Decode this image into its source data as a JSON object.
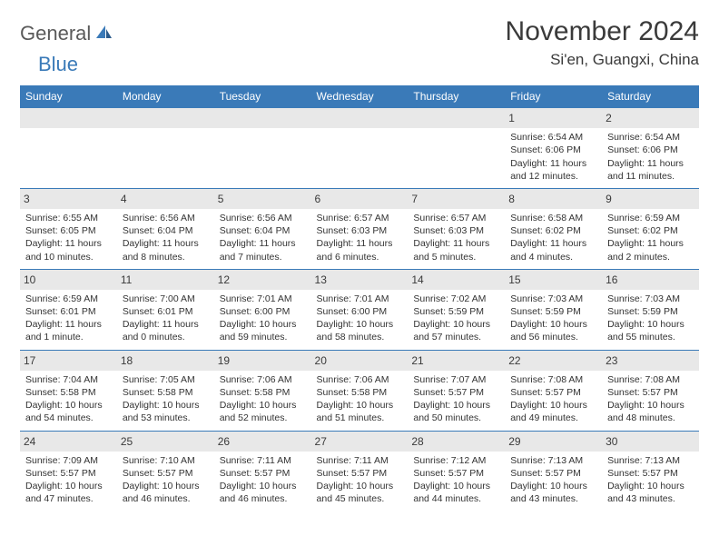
{
  "logo": {
    "general": "General",
    "blue": "Blue"
  },
  "title": "November 2024",
  "location": "Si'en, Guangxi, China",
  "colors": {
    "header_bg": "#3a7ab8",
    "header_text": "#ffffff",
    "daynum_bg": "#e8e8e8",
    "border": "#3a7ab8",
    "body_text": "#333333",
    "logo_gray": "#5a5a5a",
    "logo_blue": "#3a7ab8"
  },
  "weekdays": [
    "Sunday",
    "Monday",
    "Tuesday",
    "Wednesday",
    "Thursday",
    "Friday",
    "Saturday"
  ],
  "grid": [
    [
      null,
      null,
      null,
      null,
      null,
      {
        "n": "1",
        "sr": "Sunrise: 6:54 AM",
        "ss": "Sunset: 6:06 PM",
        "dl": "Daylight: 11 hours and 12 minutes."
      },
      {
        "n": "2",
        "sr": "Sunrise: 6:54 AM",
        "ss": "Sunset: 6:06 PM",
        "dl": "Daylight: 11 hours and 11 minutes."
      }
    ],
    [
      {
        "n": "3",
        "sr": "Sunrise: 6:55 AM",
        "ss": "Sunset: 6:05 PM",
        "dl": "Daylight: 11 hours and 10 minutes."
      },
      {
        "n": "4",
        "sr": "Sunrise: 6:56 AM",
        "ss": "Sunset: 6:04 PM",
        "dl": "Daylight: 11 hours and 8 minutes."
      },
      {
        "n": "5",
        "sr": "Sunrise: 6:56 AM",
        "ss": "Sunset: 6:04 PM",
        "dl": "Daylight: 11 hours and 7 minutes."
      },
      {
        "n": "6",
        "sr": "Sunrise: 6:57 AM",
        "ss": "Sunset: 6:03 PM",
        "dl": "Daylight: 11 hours and 6 minutes."
      },
      {
        "n": "7",
        "sr": "Sunrise: 6:57 AM",
        "ss": "Sunset: 6:03 PM",
        "dl": "Daylight: 11 hours and 5 minutes."
      },
      {
        "n": "8",
        "sr": "Sunrise: 6:58 AM",
        "ss": "Sunset: 6:02 PM",
        "dl": "Daylight: 11 hours and 4 minutes."
      },
      {
        "n": "9",
        "sr": "Sunrise: 6:59 AM",
        "ss": "Sunset: 6:02 PM",
        "dl": "Daylight: 11 hours and 2 minutes."
      }
    ],
    [
      {
        "n": "10",
        "sr": "Sunrise: 6:59 AM",
        "ss": "Sunset: 6:01 PM",
        "dl": "Daylight: 11 hours and 1 minute."
      },
      {
        "n": "11",
        "sr": "Sunrise: 7:00 AM",
        "ss": "Sunset: 6:01 PM",
        "dl": "Daylight: 11 hours and 0 minutes."
      },
      {
        "n": "12",
        "sr": "Sunrise: 7:01 AM",
        "ss": "Sunset: 6:00 PM",
        "dl": "Daylight: 10 hours and 59 minutes."
      },
      {
        "n": "13",
        "sr": "Sunrise: 7:01 AM",
        "ss": "Sunset: 6:00 PM",
        "dl": "Daylight: 10 hours and 58 minutes."
      },
      {
        "n": "14",
        "sr": "Sunrise: 7:02 AM",
        "ss": "Sunset: 5:59 PM",
        "dl": "Daylight: 10 hours and 57 minutes."
      },
      {
        "n": "15",
        "sr": "Sunrise: 7:03 AM",
        "ss": "Sunset: 5:59 PM",
        "dl": "Daylight: 10 hours and 56 minutes."
      },
      {
        "n": "16",
        "sr": "Sunrise: 7:03 AM",
        "ss": "Sunset: 5:59 PM",
        "dl": "Daylight: 10 hours and 55 minutes."
      }
    ],
    [
      {
        "n": "17",
        "sr": "Sunrise: 7:04 AM",
        "ss": "Sunset: 5:58 PM",
        "dl": "Daylight: 10 hours and 54 minutes."
      },
      {
        "n": "18",
        "sr": "Sunrise: 7:05 AM",
        "ss": "Sunset: 5:58 PM",
        "dl": "Daylight: 10 hours and 53 minutes."
      },
      {
        "n": "19",
        "sr": "Sunrise: 7:06 AM",
        "ss": "Sunset: 5:58 PM",
        "dl": "Daylight: 10 hours and 52 minutes."
      },
      {
        "n": "20",
        "sr": "Sunrise: 7:06 AM",
        "ss": "Sunset: 5:58 PM",
        "dl": "Daylight: 10 hours and 51 minutes."
      },
      {
        "n": "21",
        "sr": "Sunrise: 7:07 AM",
        "ss": "Sunset: 5:57 PM",
        "dl": "Daylight: 10 hours and 50 minutes."
      },
      {
        "n": "22",
        "sr": "Sunrise: 7:08 AM",
        "ss": "Sunset: 5:57 PM",
        "dl": "Daylight: 10 hours and 49 minutes."
      },
      {
        "n": "23",
        "sr": "Sunrise: 7:08 AM",
        "ss": "Sunset: 5:57 PM",
        "dl": "Daylight: 10 hours and 48 minutes."
      }
    ],
    [
      {
        "n": "24",
        "sr": "Sunrise: 7:09 AM",
        "ss": "Sunset: 5:57 PM",
        "dl": "Daylight: 10 hours and 47 minutes."
      },
      {
        "n": "25",
        "sr": "Sunrise: 7:10 AM",
        "ss": "Sunset: 5:57 PM",
        "dl": "Daylight: 10 hours and 46 minutes."
      },
      {
        "n": "26",
        "sr": "Sunrise: 7:11 AM",
        "ss": "Sunset: 5:57 PM",
        "dl": "Daylight: 10 hours and 46 minutes."
      },
      {
        "n": "27",
        "sr": "Sunrise: 7:11 AM",
        "ss": "Sunset: 5:57 PM",
        "dl": "Daylight: 10 hours and 45 minutes."
      },
      {
        "n": "28",
        "sr": "Sunrise: 7:12 AM",
        "ss": "Sunset: 5:57 PM",
        "dl": "Daylight: 10 hours and 44 minutes."
      },
      {
        "n": "29",
        "sr": "Sunrise: 7:13 AM",
        "ss": "Sunset: 5:57 PM",
        "dl": "Daylight: 10 hours and 43 minutes."
      },
      {
        "n": "30",
        "sr": "Sunrise: 7:13 AM",
        "ss": "Sunset: 5:57 PM",
        "dl": "Daylight: 10 hours and 43 minutes."
      }
    ]
  ]
}
